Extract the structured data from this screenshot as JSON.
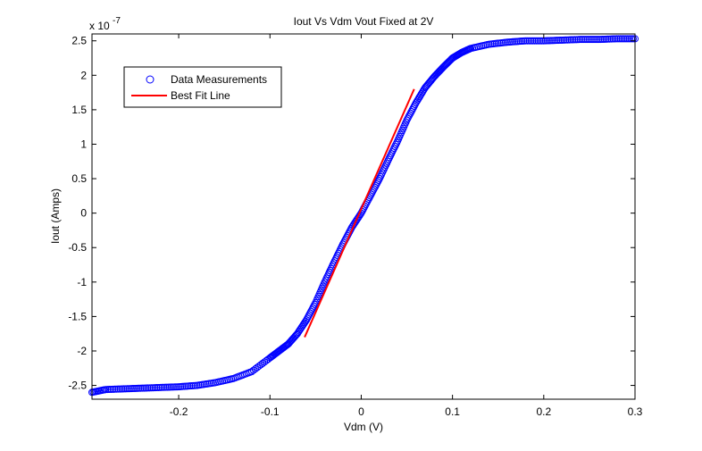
{
  "chart_data": {
    "type": "scatter",
    "title": "Iout Vs Vdm Vout Fixed at 2V",
    "xlabel": "Vdm (V)",
    "ylabel": "Iout (Amps)",
    "y_multiplier": "x 10",
    "y_exponent": "-7",
    "xlim": [
      -0.295,
      0.3
    ],
    "ylim": [
      -2.7,
      2.6
    ],
    "x_ticks": [
      -0.2,
      -0.1,
      0,
      0.1,
      0.2,
      0.3
    ],
    "x_tick_labels": [
      "-0.2",
      "-0.1",
      "0",
      "0.1",
      "0.2",
      "0.3"
    ],
    "y_ticks": [
      -2.5,
      -2,
      -1.5,
      -1,
      -0.5,
      0,
      0.5,
      1,
      1.5,
      2,
      2.5
    ],
    "y_tick_labels": [
      "-2.5",
      "-2",
      "-1.5",
      "-1",
      "-0.5",
      "0",
      "0.5",
      "1",
      "1.5",
      "2",
      "2.5"
    ],
    "grid": false,
    "legend_position": "top-left",
    "series": [
      {
        "name": "Data Measurements",
        "marker": "circle",
        "color": "#0000ff",
        "x": [
          -0.295,
          -0.28,
          -0.26,
          -0.24,
          -0.22,
          -0.2,
          -0.18,
          -0.16,
          -0.14,
          -0.12,
          -0.1,
          -0.09,
          -0.08,
          -0.07,
          -0.06,
          -0.05,
          -0.04,
          -0.03,
          -0.02,
          -0.01,
          0,
          0.01,
          0.02,
          0.03,
          0.04,
          0.05,
          0.06,
          0.07,
          0.08,
          0.09,
          0.1,
          0.11,
          0.12,
          0.14,
          0.16,
          0.18,
          0.2,
          0.22,
          0.24,
          0.26,
          0.28,
          0.3
        ],
        "y": [
          -2.6,
          -2.56,
          -2.55,
          -2.54,
          -2.53,
          -2.52,
          -2.5,
          -2.46,
          -2.4,
          -2.3,
          -2.1,
          -2.0,
          -1.9,
          -1.75,
          -1.55,
          -1.3,
          -1.0,
          -0.72,
          -0.45,
          -0.2,
          0,
          0.25,
          0.5,
          0.78,
          1.05,
          1.35,
          1.6,
          1.82,
          1.98,
          2.12,
          2.25,
          2.33,
          2.39,
          2.45,
          2.48,
          2.5,
          2.5,
          2.51,
          2.52,
          2.52,
          2.53,
          2.53
        ]
      },
      {
        "name": "Best Fit Line",
        "marker": "line",
        "color": "#ff0000",
        "x": [
          -0.062,
          0.058
        ],
        "y": [
          -1.8,
          1.8
        ]
      }
    ]
  }
}
